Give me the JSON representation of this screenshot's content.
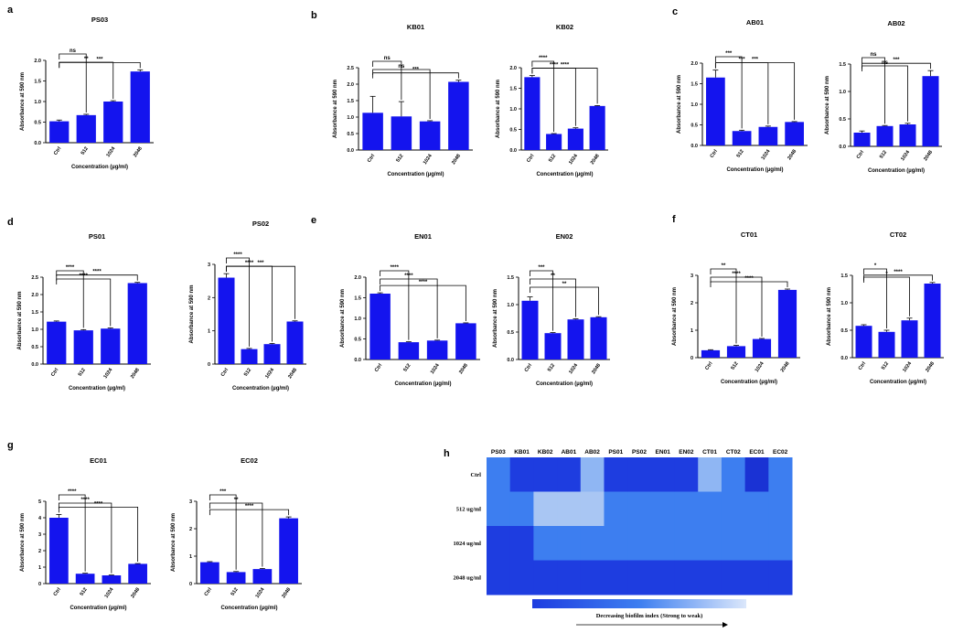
{
  "colors": {
    "bar": "#1414ee",
    "axis": "#000000"
  },
  "panels": [
    {
      "letter": "a",
      "xlabel": "Concentration (µg/ml)"
    },
    {
      "letter": "b",
      "xlabel": "Concentration (µg/ml)"
    },
    {
      "letter": "c",
      "xlabel": "Concentration (µg/ml)"
    },
    {
      "letter": "d",
      "xlabel": "Concentration (µg/ml)"
    },
    {
      "letter": "e",
      "xlabel": "Concentration (µg/ml)"
    },
    {
      "letter": "f",
      "xlabel": "Concentration (µg/ml)"
    },
    {
      "letter": "g",
      "xlabel": "Concentration (µg/ml)"
    },
    {
      "letter": "h",
      "xlabel": ""
    }
  ],
  "chart_data": [
    {
      "type": "bar",
      "panel": "a",
      "title": "PS03",
      "ylabel": "Absorbance at 590 nm",
      "categories": [
        "Ctrl",
        "512",
        "1024",
        "2048"
      ],
      "values": [
        0.52,
        0.67,
        1.0,
        1.73
      ],
      "errors": [
        0.03,
        0.02,
        0.02,
        0.04
      ],
      "ylim": [
        0,
        2.0
      ],
      "yticks": [
        "0.0",
        "0.5",
        "1.0",
        "1.5",
        "2.0"
      ],
      "comparisons": [
        {
          "to": 1,
          "label": "ns"
        },
        {
          "to": 2,
          "label": "**"
        },
        {
          "to": 3,
          "label": "***"
        }
      ]
    },
    {
      "type": "bar",
      "panel": "b",
      "title": "KB01",
      "ylabel": "Absorbance at 590 nm",
      "categories": [
        "Ctrl",
        "512",
        "1024",
        "2048"
      ],
      "values": [
        1.13,
        1.02,
        0.87,
        2.07
      ],
      "errors": [
        0.5,
        0.45,
        0.02,
        0.05
      ],
      "ylim": [
        0,
        2.5
      ],
      "yticks": [
        "0.0",
        "0.5",
        "1.0",
        "1.5",
        "2.0",
        "2.5"
      ],
      "comparisons": [
        {
          "to": 1,
          "label": "ns"
        },
        {
          "to": 2,
          "label": "ns"
        },
        {
          "to": 3,
          "label": "***"
        }
      ]
    },
    {
      "type": "bar",
      "panel": "b",
      "title": "KB02",
      "ylabel": "Absorbance at 590 nm",
      "categories": [
        "Ctrl",
        "512",
        "1024",
        "2048"
      ],
      "values": [
        1.77,
        0.39,
        0.52,
        1.07
      ],
      "errors": [
        0.04,
        0.01,
        0.02,
        0.01
      ],
      "ylim": [
        0,
        2.0
      ],
      "yticks": [
        "0.0",
        "0.5",
        "1.0",
        "1.5",
        "2.0"
      ],
      "comparisons": [
        {
          "to": 1,
          "label": "****"
        },
        {
          "to": 2,
          "label": "****"
        },
        {
          "to": 3,
          "label": "****"
        }
      ]
    },
    {
      "type": "bar",
      "panel": "c",
      "title": "AB01",
      "ylabel": "Absorbance at 590 nm",
      "categories": [
        "Ctrl",
        "512",
        "1024",
        "2048"
      ],
      "values": [
        1.65,
        0.35,
        0.45,
        0.57
      ],
      "errors": [
        0.18,
        0.02,
        0.02,
        0.01
      ],
      "ylim": [
        0,
        2.0
      ],
      "yticks": [
        "0.0",
        "0.5",
        "1.0",
        "1.5",
        "2.0"
      ],
      "comparisons": [
        {
          "to": 1,
          "label": "***"
        },
        {
          "to": 2,
          "label": "***"
        },
        {
          "to": 3,
          "label": "***"
        }
      ]
    },
    {
      "type": "bar",
      "panel": "c",
      "title": "AB02",
      "ylabel": "Absorbance at 590 nm",
      "categories": [
        "Ctrl",
        "512",
        "1024",
        "2048"
      ],
      "values": [
        0.25,
        0.37,
        0.4,
        1.28
      ],
      "errors": [
        0.03,
        0.01,
        0.02,
        0.1
      ],
      "ylim": [
        0,
        1.5
      ],
      "yticks": [
        "0.0",
        "0.5",
        "1.0",
        "1.5"
      ],
      "comparisons": [
        {
          "to": 1,
          "label": "ns"
        },
        {
          "to": 2,
          "label": "ns"
        },
        {
          "to": 3,
          "label": "***"
        }
      ]
    },
    {
      "type": "bar",
      "panel": "d",
      "title": "PS01",
      "ylabel": "Absorbance at 590 nm",
      "categories": [
        "Ctrl",
        "512",
        "1024",
        "2048"
      ],
      "values": [
        1.22,
        0.97,
        1.02,
        2.33
      ],
      "errors": [
        0.02,
        0.02,
        0.02,
        0.02
      ],
      "ylim": [
        0,
        2.5
      ],
      "yticks": [
        "0.0",
        "0.5",
        "1.0",
        "1.5",
        "2.0",
        "2.5"
      ],
      "comparisons": [
        {
          "to": 1,
          "label": "****"
        },
        {
          "to": 2,
          "label": "****"
        },
        {
          "to": 3,
          "label": "****"
        }
      ]
    },
    {
      "type": "bar",
      "panel": "d",
      "title": "PS02",
      "ylabel": "Absorbance at 590 nm",
      "categories": [
        "Ctrl",
        "512",
        "1024",
        "2048"
      ],
      "values": [
        2.6,
        0.45,
        0.6,
        1.28
      ],
      "errors": [
        0.12,
        0.02,
        0.02,
        0.02
      ],
      "ylim": [
        0,
        3
      ],
      "yticks": [
        "0",
        "1",
        "2",
        "3"
      ],
      "comparisons": [
        {
          "to": 1,
          "label": "****"
        },
        {
          "to": 2,
          "label": "****"
        },
        {
          "to": 3,
          "label": "***"
        }
      ]
    },
    {
      "type": "bar",
      "panel": "e",
      "title": "EN01",
      "ylabel": "Absorbance at 590 nm",
      "categories": [
        "Ctrl",
        "512",
        "1024",
        "2048"
      ],
      "values": [
        1.6,
        0.42,
        0.46,
        0.88
      ],
      "errors": [
        0.02,
        0.01,
        0.01,
        0.01
      ],
      "ylim": [
        0,
        2.0
      ],
      "yticks": [
        "0.0",
        "0.5",
        "1.0",
        "1.5",
        "2.0"
      ],
      "comparisons": [
        {
          "to": 1,
          "label": "****"
        },
        {
          "to": 2,
          "label": "****"
        },
        {
          "to": 3,
          "label": "****"
        }
      ]
    },
    {
      "type": "bar",
      "panel": "e",
      "title": "EN02",
      "ylabel": "Absorbance at 590 nm",
      "categories": [
        "Ctrl",
        "512",
        "1024",
        "2048"
      ],
      "values": [
        1.07,
        0.48,
        0.73,
        0.77
      ],
      "errors": [
        0.07,
        0.01,
        0.01,
        0.01
      ],
      "ylim": [
        0,
        1.5
      ],
      "yticks": [
        "0.0",
        "0.5",
        "1.0",
        "1.5"
      ],
      "comparisons": [
        {
          "to": 1,
          "label": "***"
        },
        {
          "to": 2,
          "label": "**"
        },
        {
          "to": 3,
          "label": "**"
        }
      ]
    },
    {
      "type": "bar",
      "panel": "f",
      "title": "CT01",
      "ylabel": "Absorbance at 590 nm",
      "categories": [
        "Ctrl",
        "512",
        "1024",
        "2048"
      ],
      "values": [
        0.27,
        0.42,
        0.68,
        2.47
      ],
      "errors": [
        0.02,
        0.03,
        0.02,
        0.03
      ],
      "ylim": [
        0,
        3
      ],
      "yticks": [
        "0",
        "1",
        "2",
        "3"
      ],
      "comparisons": [
        {
          "to": 1,
          "label": "**"
        },
        {
          "to": 2,
          "label": "****"
        },
        {
          "to": 3,
          "label": "****"
        }
      ]
    },
    {
      "type": "bar",
      "panel": "f",
      "title": "CT02",
      "ylabel": "Absorbance at 590 nm",
      "categories": [
        "Ctrl",
        "512",
        "1024",
        "2048"
      ],
      "values": [
        0.58,
        0.47,
        0.68,
        1.35
      ],
      "errors": [
        0.02,
        0.03,
        0.04,
        0.02
      ],
      "ylim": [
        0,
        1.5
      ],
      "yticks": [
        "0.0",
        "0.5",
        "1.0",
        "1.5"
      ],
      "comparisons": [
        {
          "to": 1,
          "label": "*"
        },
        {
          "to": 2,
          "label": "*"
        },
        {
          "to": 3,
          "label": "****"
        }
      ]
    },
    {
      "type": "bar",
      "panel": "g",
      "title": "EC01",
      "ylabel": "Absorbance at 590 nm",
      "categories": [
        "Ctrl",
        "512",
        "1024",
        "2048"
      ],
      "values": [
        4.0,
        0.6,
        0.5,
        1.2
      ],
      "errors": [
        0.2,
        0.03,
        0.02,
        0.02
      ],
      "ylim": [
        0,
        5
      ],
      "yticks": [
        "0",
        "1",
        "2",
        "3",
        "4",
        "5"
      ],
      "comparisons": [
        {
          "to": 1,
          "label": "****"
        },
        {
          "to": 2,
          "label": "****"
        },
        {
          "to": 3,
          "label": "****"
        }
      ]
    },
    {
      "type": "bar",
      "panel": "g",
      "title": "EC02",
      "ylabel": "Absorbance at 590 nm",
      "categories": [
        "Ctrl",
        "512",
        "1024",
        "2048"
      ],
      "values": [
        0.78,
        0.42,
        0.53,
        2.38
      ],
      "errors": [
        0.02,
        0.02,
        0.02,
        0.05
      ],
      "ylim": [
        0,
        3
      ],
      "yticks": [
        "0",
        "1",
        "2",
        "3"
      ],
      "comparisons": [
        {
          "to": 1,
          "label": "***"
        },
        {
          "to": 2,
          "label": "**"
        },
        {
          "to": 3,
          "label": "****"
        }
      ]
    },
    {
      "type": "heatmap",
      "panel": "h",
      "columns": [
        "PS03",
        "KB01",
        "KB02",
        "AB01",
        "AB02",
        "PS01",
        "PS02",
        "EN01",
        "EN02",
        "CT01",
        "CT02",
        "EC01",
        "EC02"
      ],
      "rows": [
        "Ctrl",
        "512 ug/ml",
        "1024 ug/ml",
        "2048 ug/ml"
      ],
      "cell_colors": [
        [
          "#3d7ef0",
          "#1e3de0",
          "#1e3de0",
          "#1e3de0",
          "#8fb6f3",
          "#1e3de0",
          "#1e3de0",
          "#1e3de0",
          "#1e3de0",
          "#8fb6f3",
          "#3d7ef0",
          "#1a32d4",
          "#3d7ef0"
        ],
        [
          "#3d7ef0",
          "#3d7ef0",
          "#a9c6f3",
          "#a9c6f3",
          "#a9c6f3",
          "#3d7ef0",
          "#3d7ef0",
          "#3d7ef0",
          "#3d7ef0",
          "#3d7ef0",
          "#3d7ef0",
          "#3d7ef0",
          "#3d7ef0"
        ],
        [
          "#1e3de0",
          "#1e3de0",
          "#3d7ef0",
          "#3d7ef0",
          "#3d7ef0",
          "#3d7ef0",
          "#3d7ef0",
          "#3d7ef0",
          "#3d7ef0",
          "#3d7ef0",
          "#3d7ef0",
          "#3d7ef0",
          "#3d7ef0"
        ],
        [
          "#1e3de0",
          "#1e3de0",
          "#1e3de0",
          "#1e3de0",
          "#1e3de0",
          "#1e3de0",
          "#1e3de0",
          "#1e3de0",
          "#1e3de0",
          "#1e3de0",
          "#1e3de0",
          "#1e3de0",
          "#1e3de0"
        ]
      ],
      "legend_gradient": [
        "#1e3de0",
        "#3d7ef0",
        "#dbe7fb"
      ],
      "legend_label": "Decreasing biofilm index (Strong to weak)"
    }
  ]
}
